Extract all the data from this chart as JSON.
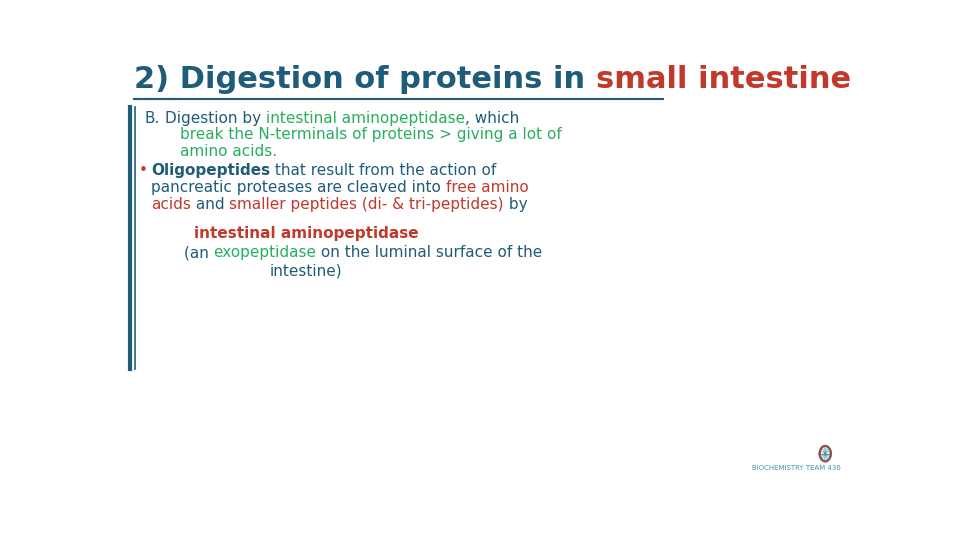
{
  "background_color": "#ffffff",
  "title_prefix": "2) Digestion of proteins in ",
  "title_prefix_color": "#1f5c7a",
  "title_suffix": "small intestine",
  "title_suffix_color": "#c0392b",
  "title_fontsize": 22,
  "title_font": "DejaVu Sans",
  "underline_color": "#1f5c7a",
  "left_bar_color": "#1f5c7a",
  "section_B_color": "#1f5c7a",
  "line2_color": "#27ae60",
  "line3_color": "#27ae60",
  "bullet_color": "#c0392b",
  "center_bold_color": "#c0392b",
  "center_line3_color": "#1f5c7a",
  "watermark_text": "BIOCHEMISTRY TEAM 436",
  "watermark_color": "#2e8b9a",
  "body_fontsize": 11,
  "body_font": "DejaVu Sans"
}
